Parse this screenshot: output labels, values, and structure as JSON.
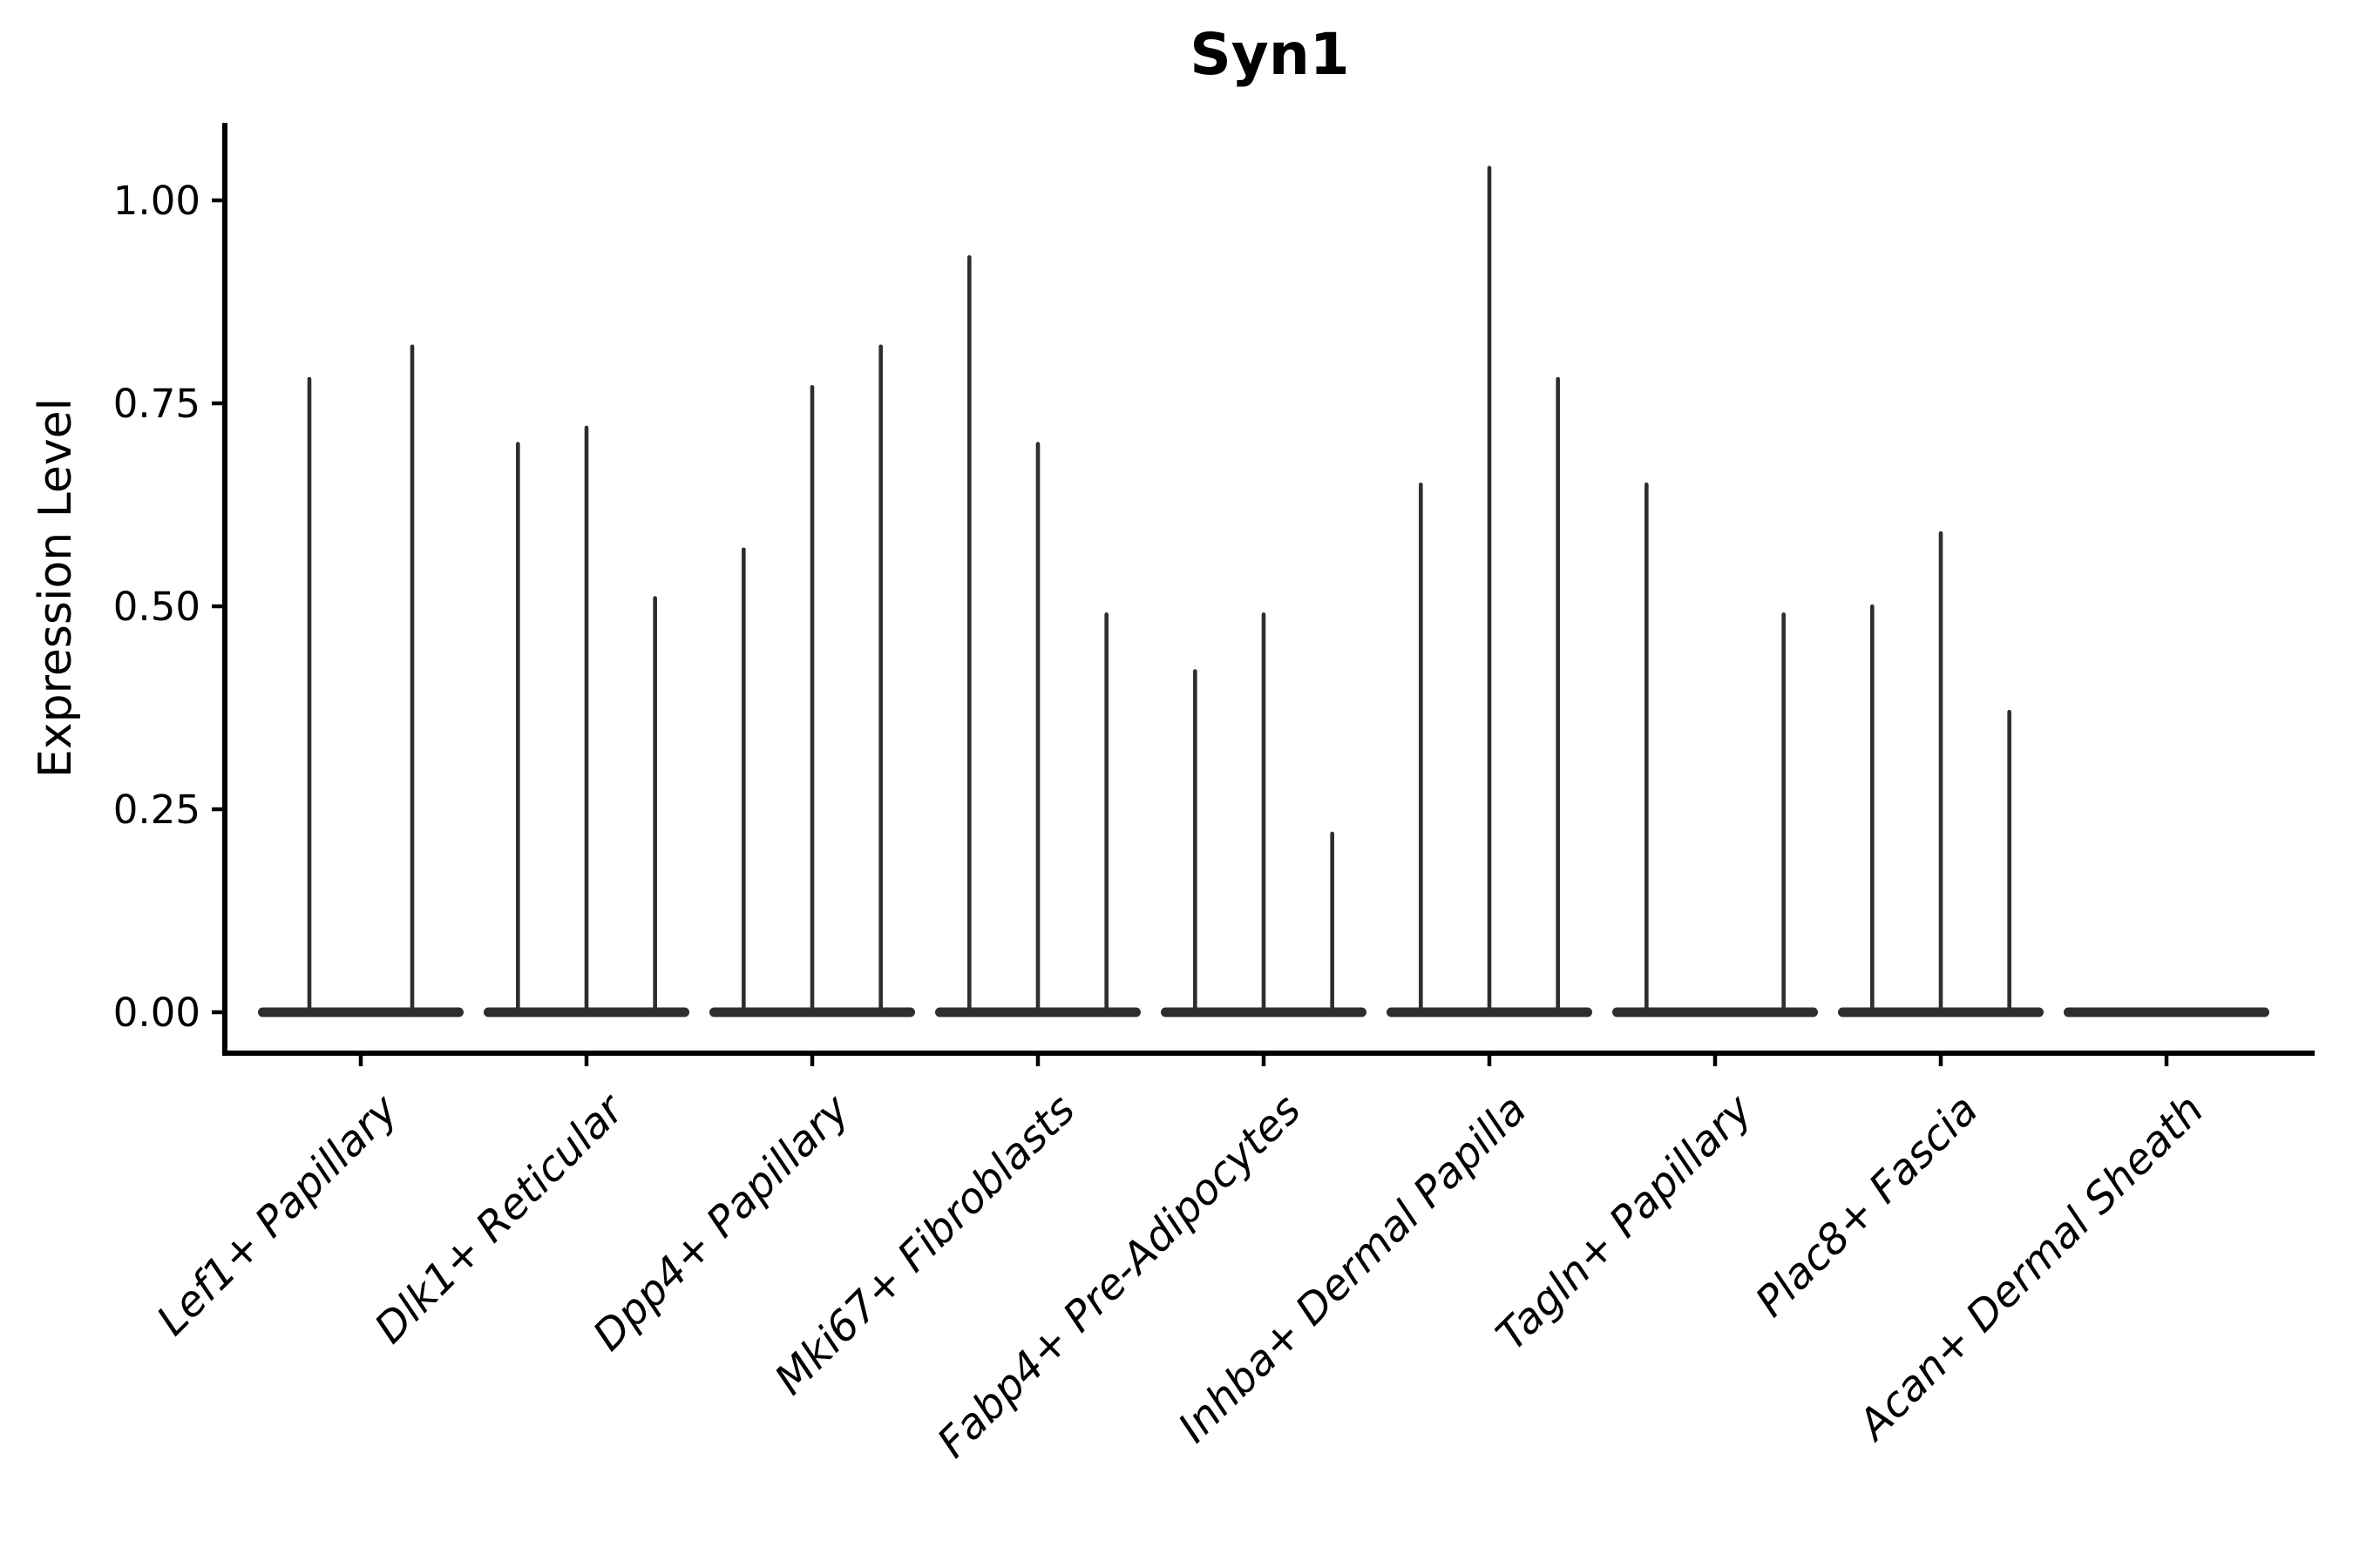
{
  "chart_data": {
    "type": "violin",
    "title": "Syn1",
    "ylabel": "Expression Level",
    "xlabel": "",
    "grid": false,
    "legend": "none",
    "ylim": [
      -0.05,
      1.1
    ],
    "yticks": [
      0,
      0.25,
      0.5,
      0.75,
      1.0
    ],
    "ytick_labels": [
      "0.00",
      "0.25",
      "0.50",
      "0.75",
      "1.00"
    ],
    "categories": [
      "Lef1+ Papillary",
      "Dlk1+ Reticular",
      "Dpp4+ Papillary",
      "Mki67+ Fibroblasts",
      "Fabp4+ Pre-Adipocytes",
      "Inhba+ Dermal Papilla",
      "Tagln+ Papillary",
      "Plac8+ Fascia",
      "Acan+ Dermal Sheath"
    ],
    "groups": [
      {
        "category": "Lef1+ Papillary",
        "spike_maxima": [
          0.78,
          0.82
        ]
      },
      {
        "category": "Dlk1+ Reticular",
        "spike_maxima": [
          0.7,
          0.72,
          0.51
        ]
      },
      {
        "category": "Dpp4+ Papillary",
        "spike_maxima": [
          0.57,
          0.77,
          0.82
        ]
      },
      {
        "category": "Mki67+ Fibroblasts",
        "spike_maxima": [
          0.93,
          0.7,
          0.49
        ]
      },
      {
        "category": "Fabp4+ Pre-Adipocytes",
        "spike_maxima": [
          0.42,
          0.49,
          0.22
        ]
      },
      {
        "category": "Inhba+ Dermal Papilla",
        "spike_maxima": [
          0.65,
          1.04,
          0.78
        ]
      },
      {
        "category": "Tagln+ Papillary",
        "spike_maxima": [
          0.65,
          0,
          0.49
        ]
      },
      {
        "category": "Plac8+ Fascia",
        "spike_maxima": [
          0.5,
          0.59,
          0.37
        ]
      },
      {
        "category": "Acan+ Dermal Sheath",
        "spike_maxima": []
      }
    ],
    "note": "Each category shows flat violin mass at 0 with thin spikes reaching the listed maxima"
  },
  "colors": {
    "background": "#ffffff",
    "violin": "#2e2e2e",
    "axis": "#000000",
    "text": "#000000"
  }
}
